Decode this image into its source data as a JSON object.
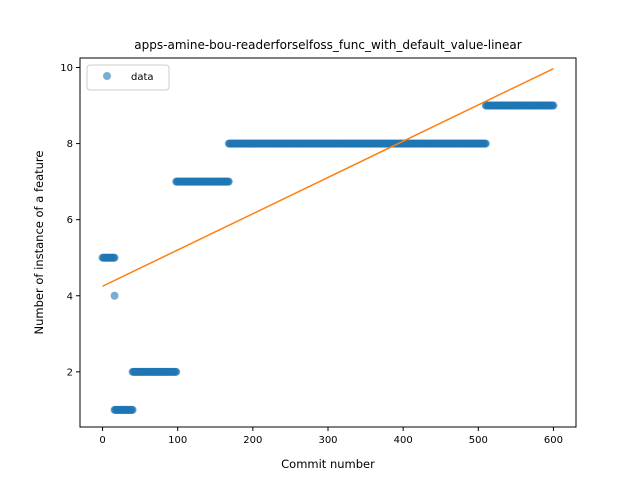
{
  "chart_data": {
    "type": "scatter",
    "title": "apps-amine-bou-readerforselfoss_func_with_default_value-linear",
    "xlabel": "Commit number",
    "ylabel": "Number of instance of a feature",
    "xlim": [
      -30,
      630
    ],
    "ylim": [
      0.55,
      10.25
    ],
    "x_ticks": [
      0,
      100,
      200,
      300,
      400,
      500,
      600
    ],
    "y_ticks": [
      2,
      4,
      6,
      8,
      10
    ],
    "grid": false,
    "legend": {
      "placement": "top-left",
      "entries": [
        "data"
      ]
    },
    "colors": {
      "points": "#1f77b4",
      "fit": "#ff7f0e"
    },
    "series": [
      {
        "name": "data",
        "kind": "points",
        "segments": [
          {
            "x_start": 0,
            "x_end": 16,
            "y": 5
          },
          {
            "x_start": 16,
            "x_end": 16,
            "y": 4
          },
          {
            "x_start": 16,
            "x_end": 40,
            "y": 1
          },
          {
            "x_start": 40,
            "x_end": 98,
            "y": 2
          },
          {
            "x_start": 98,
            "x_end": 168,
            "y": 7
          },
          {
            "x_start": 168,
            "x_end": 510,
            "y": 8
          },
          {
            "x_start": 510,
            "x_end": 600,
            "y": 9
          }
        ]
      },
      {
        "kind": "line",
        "x": [
          0,
          600
        ],
        "y": [
          4.25,
          9.97
        ]
      }
    ]
  }
}
